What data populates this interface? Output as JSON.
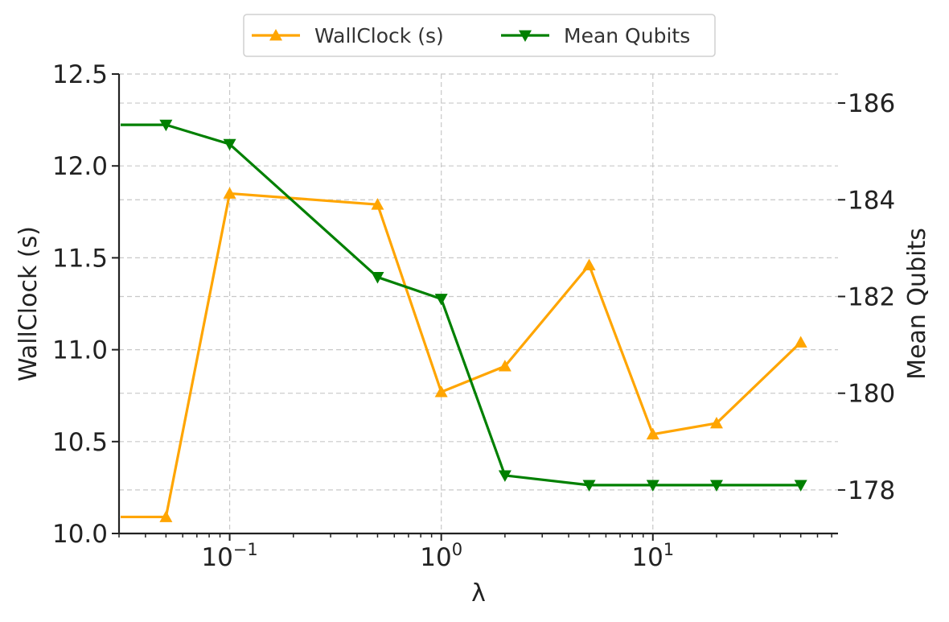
{
  "chart_data": {
    "type": "line",
    "x_scale": "log",
    "xlabel": "λ",
    "x": [
      0.03,
      0.05,
      0.1,
      0.5,
      1,
      2,
      5,
      10,
      20,
      50
    ],
    "x_ticks": [
      {
        "value": 0.1,
        "base": "10",
        "exp": "−1"
      },
      {
        "value": 1,
        "base": "10",
        "exp": "0"
      },
      {
        "value": 10,
        "base": "10",
        "exp": "1"
      }
    ],
    "left_axis": {
      "label": "WallClock (s)",
      "ylim": [
        10.0,
        12.5
      ],
      "ticks": [
        "10.0",
        "10.5",
        "11.0",
        "11.5",
        "12.0",
        "12.5"
      ]
    },
    "right_axis": {
      "label": "Mean Qubits",
      "ylim": [
        177.1,
        186.6
      ],
      "ticks": [
        "178",
        "180",
        "182",
        "184",
        "186"
      ]
    },
    "series": [
      {
        "name": "WallClock (s)",
        "axis": "left",
        "color": "#FFA500",
        "marker": "triangle-up",
        "values": [
          10.09,
          10.09,
          11.85,
          11.79,
          10.77,
          10.91,
          11.46,
          10.54,
          10.6,
          11.04
        ]
      },
      {
        "name": "Mean Qubits",
        "axis": "right",
        "color": "#008000",
        "marker": "triangle-down",
        "values": [
          185.55,
          185.55,
          185.15,
          182.4,
          181.95,
          178.3,
          178.1,
          178.1,
          178.1,
          178.1
        ]
      }
    ],
    "grid": true,
    "legend": "top-center"
  }
}
